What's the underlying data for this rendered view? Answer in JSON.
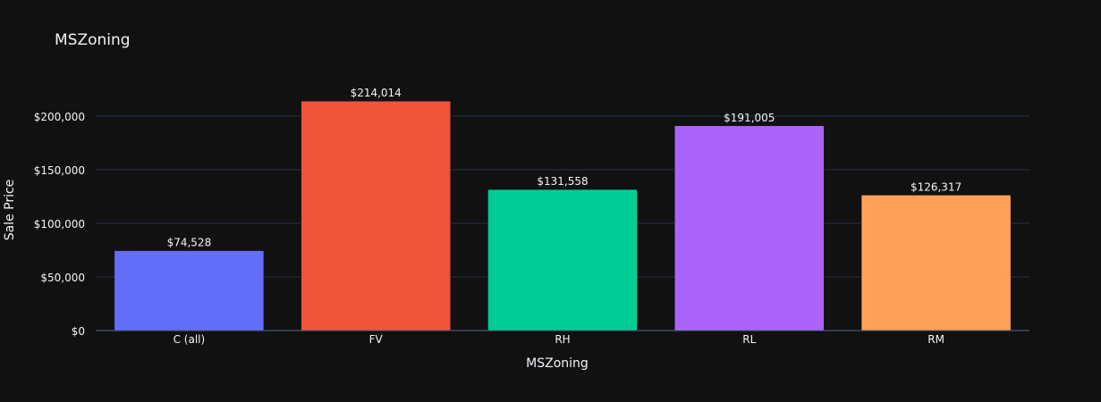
{
  "chart_data": {
    "type": "bar",
    "title": "MSZoning",
    "xlabel": "MSZoning",
    "ylabel": "Sale Price",
    "categories": [
      "C (all)",
      "FV",
      "RH",
      "RL",
      "RM"
    ],
    "values": [
      74528,
      214014,
      131558,
      191005,
      126317
    ],
    "data_labels": [
      "$74,528",
      "$214,014",
      "$131,558",
      "$191,005",
      "$126,317"
    ],
    "bar_colors": [
      "#636efa",
      "#ef553b",
      "#00cc96",
      "#ab63fa",
      "#ffa15a"
    ],
    "ylim": [
      0,
      225000
    ],
    "yticks": [
      0,
      50000,
      100000,
      150000,
      200000
    ],
    "ytick_labels": [
      "$0",
      "$50,000",
      "$100,000",
      "$150,000",
      "$200,000"
    ],
    "grid": true,
    "legend": false
  },
  "theme": {
    "background": "#111111",
    "grid_color": "#283442",
    "text_color": "#f2f5fa"
  }
}
